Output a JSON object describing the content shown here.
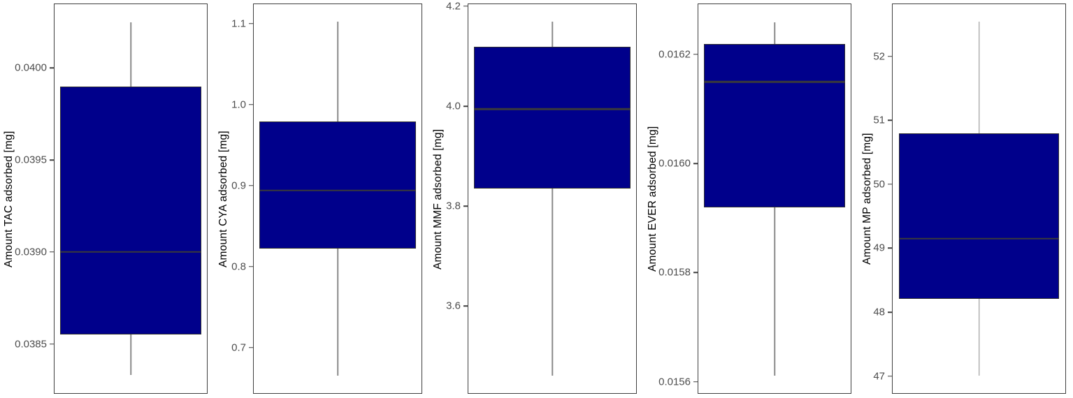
{
  "figure": {
    "description": "Five vertical box plots of adsorbed drug amounts",
    "background": "#ffffff"
  },
  "chart_data": {
    "type": "boxplot",
    "orientation": "vertical",
    "grid": false,
    "legend": false,
    "colors": {
      "box_fill": "#00008B",
      "box_border": "#2e2e2e",
      "median_line": "#3a3a3a",
      "whisker": "#8a8a8a",
      "panel_border": "#3f3f3f",
      "tick_label": "#4d4d4d",
      "tick_mark": "#3f3f3f",
      "axis_title": "#000000"
    },
    "panels": [
      {
        "ylabel": "Amount TAC adsorbed [mg]",
        "ylim": [
          0.03823,
          0.04035
        ],
        "ticks": [
          {
            "value": 0.0385,
            "label": "0.0385"
          },
          {
            "value": 0.039,
            "label": "0.0390"
          },
          {
            "value": 0.0395,
            "label": "0.0395"
          },
          {
            "value": 0.04,
            "label": "0.0400"
          }
        ],
        "stats": {
          "whisker_low": 0.03833,
          "q1": 0.03855,
          "median": 0.039,
          "q3": 0.0399,
          "whisker_high": 0.04025
        }
      },
      {
        "ylabel": "Amount CYA adsorbed [mg]",
        "ylim": [
          0.6431,
          1.1249
        ],
        "ticks": [
          {
            "value": 0.7,
            "label": "0.7"
          },
          {
            "value": 0.8,
            "label": "0.8"
          },
          {
            "value": 0.9,
            "label": "0.9"
          },
          {
            "value": 1.0,
            "label": "1.0"
          },
          {
            "value": 1.1,
            "label": "1.1"
          }
        ],
        "stats": {
          "whisker_low": 0.665,
          "q1": 0.822,
          "median": 0.894,
          "q3": 0.98,
          "whisker_high": 1.103
        }
      },
      {
        "ylabel": "Amount MMF adsorbed [mg]",
        "ylim": [
          3.4245,
          4.2055
        ],
        "ticks": [
          {
            "value": 3.6,
            "label": "3.6"
          },
          {
            "value": 3.8,
            "label": "3.8"
          },
          {
            "value": 4.0,
            "label": "4.0"
          },
          {
            "value": 4.2,
            "label": "4.2"
          }
        ],
        "stats": {
          "whisker_low": 3.46,
          "q1": 3.835,
          "median": 3.995,
          "q3": 4.12,
          "whisker_high": 4.17
        }
      },
      {
        "ylabel": "Amount EVER adsorbed [mg]",
        "ylim": [
          0.015578,
          0.016293
        ],
        "ticks": [
          {
            "value": 0.0156,
            "label": "0.0156"
          },
          {
            "value": 0.0158,
            "label": "0.0158"
          },
          {
            "value": 0.016,
            "label": "0.0160"
          },
          {
            "value": 0.0162,
            "label": "0.0162"
          }
        ],
        "stats": {
          "whisker_low": 0.01561,
          "q1": 0.01592,
          "median": 0.01615,
          "q3": 0.01622,
          "whisker_high": 0.01626
        }
      },
      {
        "ylabel": "Amount MP adsorbed [mg]",
        "ylim": [
          46.7225,
          52.8275
        ],
        "ticks": [
          {
            "value": 47,
            "label": "47"
          },
          {
            "value": 48,
            "label": "48"
          },
          {
            "value": 49,
            "label": "49"
          },
          {
            "value": 50,
            "label": "50"
          },
          {
            "value": 51,
            "label": "51"
          },
          {
            "value": 52,
            "label": "52"
          }
        ],
        "stats": {
          "whisker_low": 47.0,
          "q1": 48.2,
          "median": 49.15,
          "q3": 50.8,
          "whisker_high": 52.55
        }
      }
    ]
  }
}
